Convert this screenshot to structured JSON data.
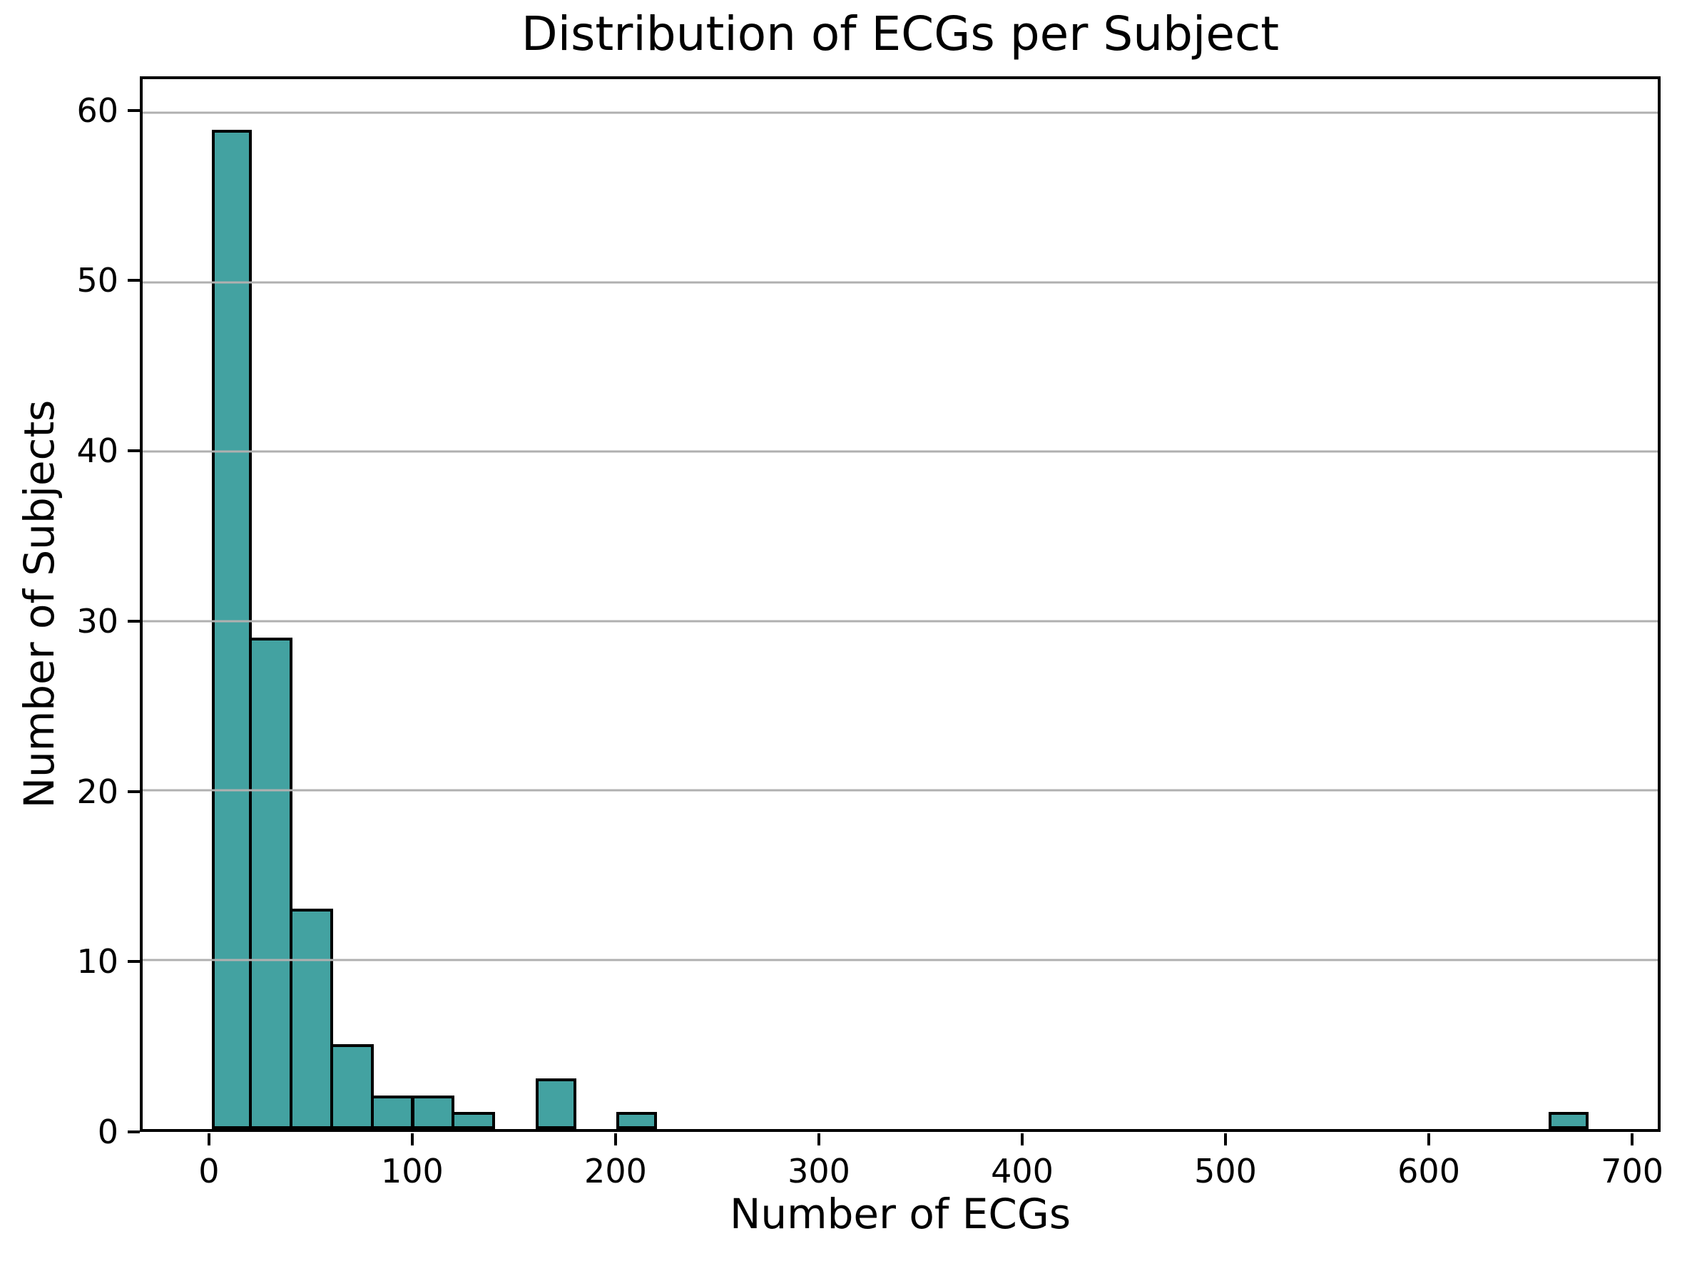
{
  "chart_data": {
    "type": "bar",
    "subtype": "histogram",
    "title": "Distribution of ECGs per Subject",
    "xlabel": "Number of ECGs",
    "ylabel": "Number of Subjects",
    "bin_width": 20,
    "bars": [
      {
        "x0": 0,
        "x1": 20,
        "count": 59
      },
      {
        "x0": 20,
        "x1": 40,
        "count": 29
      },
      {
        "x0": 40,
        "x1": 60,
        "count": 13
      },
      {
        "x0": 60,
        "x1": 80,
        "count": 5
      },
      {
        "x0": 80,
        "x1": 100,
        "count": 2
      },
      {
        "x0": 100,
        "x1": 120,
        "count": 2
      },
      {
        "x0": 120,
        "x1": 140,
        "count": 1
      },
      {
        "x0": 160,
        "x1": 180,
        "count": 3
      },
      {
        "x0": 200,
        "x1": 220,
        "count": 1
      },
      {
        "x0": 660,
        "x1": 680,
        "count": 1
      }
    ],
    "xlim": [
      -34,
      714
    ],
    "ylim": [
      0,
      62
    ],
    "xticks": [
      0,
      100,
      200,
      300,
      400,
      500,
      600,
      700
    ],
    "yticks": [
      0,
      10,
      20,
      30,
      40,
      50,
      60
    ],
    "grid": {
      "axis": "y",
      "above_bars": true
    },
    "legend": null,
    "colors": {
      "bar_fill": "#43a2a1",
      "bar_edge": "#000000",
      "grid": "#b0b0b0",
      "spine": "#000000",
      "text": "#000000",
      "background": "#ffffff"
    }
  }
}
